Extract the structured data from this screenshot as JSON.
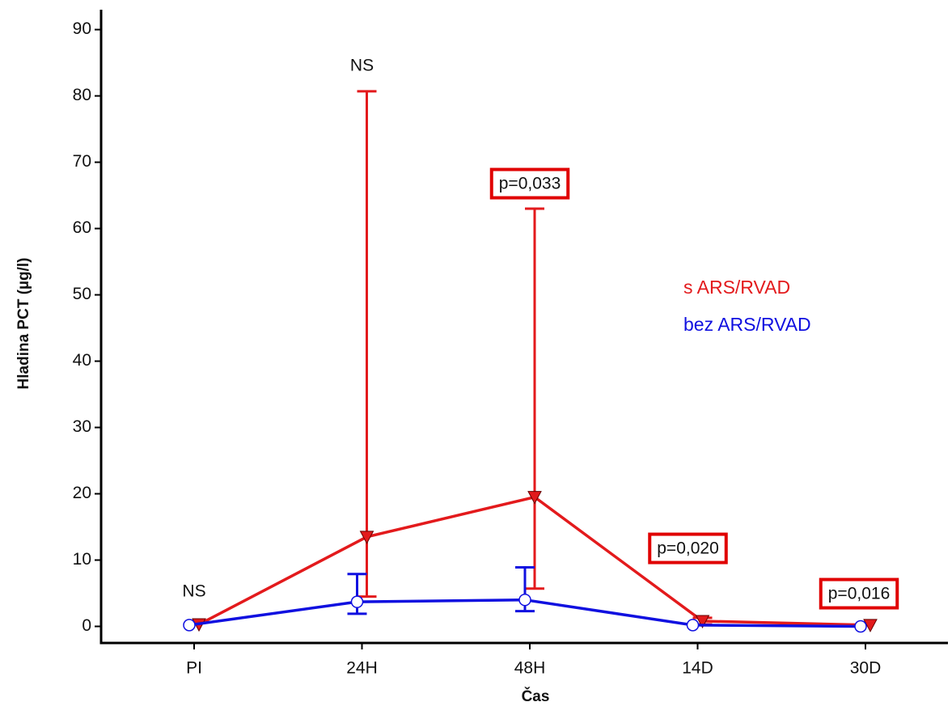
{
  "chart_data": {
    "type": "line",
    "x_label": "Čas",
    "y_label": "Hladina PCT (µg/l)",
    "categories": [
      "PI",
      "24H",
      "48H",
      "14D",
      "30D"
    ],
    "series": [
      {
        "name": "s ARS/RVAD",
        "color": "#e31a1c",
        "marker": "triangle-down",
        "values": [
          0.3,
          13.5,
          19.5,
          0.8,
          0.2
        ],
        "lower": [
          null,
          4.5,
          5.7,
          0.3,
          null
        ],
        "upper": [
          null,
          80.7,
          63,
          1.3,
          null
        ]
      },
      {
        "name": "bez ARS/RVAD",
        "color": "#1010e0",
        "marker": "circle",
        "values": [
          0.2,
          3.7,
          4.0,
          0.2,
          0
        ],
        "lower": [
          null,
          1.9,
          2.3,
          null,
          null
        ],
        "upper": [
          null,
          7.9,
          8.9,
          null,
          null
        ]
      }
    ],
    "annotations": [
      "NS",
      "NS",
      "p=0,033",
      "p=0,020",
      "p=0,016"
    ],
    "annotation_boxed": [
      false,
      false,
      true,
      true,
      true
    ],
    "ylim": [
      -2.5,
      93
    ],
    "yticks": [
      0,
      10,
      20,
      30,
      40,
      50,
      60,
      70,
      80,
      90
    ],
    "legend": "right"
  }
}
